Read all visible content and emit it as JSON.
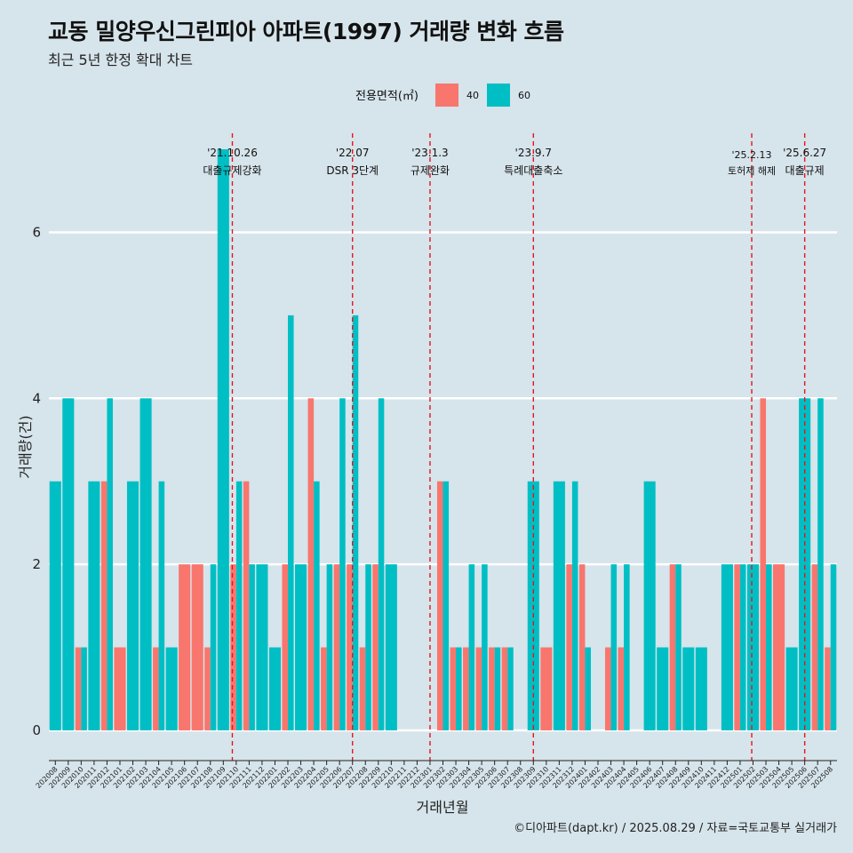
{
  "title": "교동 밀양우신그린피아 아파트(1997) 거래량 변화 흐름",
  "subtitle": "최근 5년 한정 확대 차트",
  "caption": "©디아파트(dapt.kr) / 2025.08.29 / 자료=국토교통부 실거래가",
  "colors": {
    "s40": "#f8766d",
    "s60": "#00bfc4",
    "vline": "#e8141b",
    "grid": "#ffffff",
    "background": "#d6e4eb"
  },
  "chart_data": {
    "type": "bar",
    "xlabel": "거래년월",
    "ylabel": "거래량(건)",
    "ylim": [
      -0.3,
      7.3
    ],
    "yticks": [
      0,
      2,
      4,
      6
    ],
    "legend": {
      "title": "전용면적(㎡)",
      "position": "top"
    },
    "categories": [
      "202008",
      "202009",
      "202010",
      "202011",
      "202012",
      "202101",
      "202102",
      "202103",
      "202104",
      "202105",
      "202106",
      "202107",
      "202108",
      "202109",
      "202110",
      "202111",
      "202112",
      "202201",
      "202202",
      "202203",
      "202204",
      "202205",
      "202206",
      "202207",
      "202208",
      "202209",
      "202210",
      "202211",
      "202212",
      "202301",
      "202302",
      "202303",
      "202304",
      "202305",
      "202306",
      "202307",
      "202308",
      "202309",
      "202310",
      "202311",
      "202312",
      "202401",
      "202402",
      "202403",
      "202404",
      "202405",
      "202406",
      "202407",
      "202408",
      "202409",
      "202410",
      "202411",
      "202412",
      "202501",
      "202502",
      "202503",
      "202504",
      "202505",
      "202506",
      "202507",
      "202508"
    ],
    "series": [
      {
        "name": "40",
        "values": [
          0,
          0,
          1,
          0,
          3,
          1,
          0,
          0,
          1,
          0,
          2,
          2,
          1,
          0,
          2,
          3,
          0,
          0,
          2,
          0,
          4,
          1,
          2,
          2,
          1,
          2,
          0,
          0,
          0,
          0,
          3,
          1,
          1,
          1,
          1,
          1,
          0,
          0,
          1,
          0,
          2,
          2,
          0,
          1,
          1,
          0,
          0,
          0,
          2,
          0,
          0,
          0,
          0,
          2,
          0,
          4,
          2,
          0,
          0,
          2,
          1
        ]
      },
      {
        "name": "60",
        "values": [
          3,
          4,
          1,
          3,
          4,
          0,
          3,
          4,
          3,
          1,
          0,
          0,
          2,
          7,
          3,
          2,
          2,
          1,
          5,
          2,
          3,
          2,
          4,
          5,
          2,
          4,
          2,
          0,
          0,
          0,
          3,
          1,
          2,
          2,
          1,
          1,
          0,
          3,
          0,
          3,
          3,
          1,
          0,
          2,
          2,
          0,
          3,
          1,
          2,
          1,
          1,
          0,
          2,
          2,
          2,
          2,
          0,
          1,
          4,
          4,
          2
        ]
      }
    ],
    "events": [
      {
        "date_line1": "'21.10.26",
        "date_line2": "대출규제강화",
        "at": "202110",
        "offset": -0.3,
        "size": "normal",
        "dy": 0
      },
      {
        "date_line1": "'22.07",
        "date_line2": "DSR 3단계",
        "at": "202207",
        "offset": 0,
        "size": "normal",
        "dy": 0
      },
      {
        "date_line1": "'23.1.3",
        "date_line2": "규제완화",
        "at": "202301",
        "offset": 0,
        "size": "normal",
        "dy": 0
      },
      {
        "date_line1": "'23.9.7",
        "date_line2": "특례대출축소",
        "at": "202309",
        "offset": 0,
        "size": "normal",
        "dy": 0
      },
      {
        "date_line1": "'25.2.13",
        "date_line2": "토허제 해제",
        "at": "202502",
        "offset": -0.1,
        "size": "small",
        "dy": 2
      },
      {
        "date_line1": "'25.6.27",
        "date_line2": "대출규제",
        "at": "202506",
        "offset": 0,
        "size": "normal",
        "dy": 0
      }
    ]
  }
}
